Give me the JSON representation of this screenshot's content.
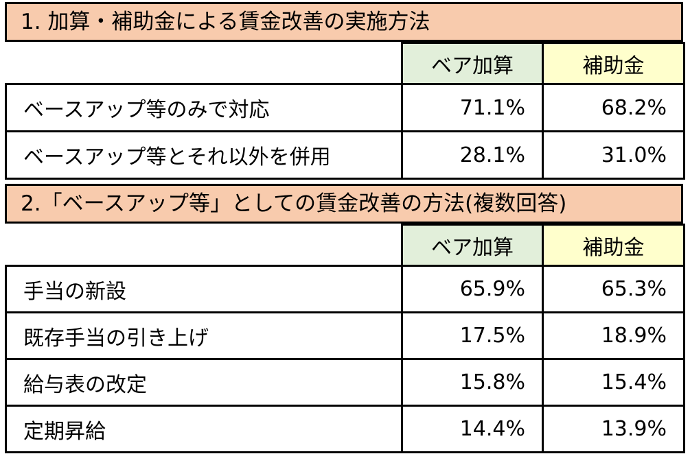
{
  "section1": {
    "title": "1. 加算・補助金による賃金改善の実施方法",
    "columns": {
      "a": "ベア加算",
      "b": "補助金"
    },
    "rows": [
      {
        "label": "ベースアップ等のみで対応",
        "a": "71.1%",
        "b": "68.2%"
      },
      {
        "label": "ベースアップ等とそれ以外を併用",
        "a": "28.1%",
        "b": "31.0%"
      }
    ]
  },
  "section2": {
    "title": "2.「ベースアップ等」としての賃金改善の方法(複数回答)",
    "columns": {
      "a": "ベア加算",
      "b": "補助金"
    },
    "rows": [
      {
        "label": "手当の新設",
        "a": "65.9%",
        "b": "65.3%"
      },
      {
        "label": "既存手当の引き上げ",
        "a": "17.5%",
        "b": "18.9%"
      },
      {
        "label": "給与表の改定",
        "a": "15.8%",
        "b": "15.4%"
      },
      {
        "label": "定期昇給",
        "a": "14.4%",
        "b": "13.9%"
      }
    ]
  },
  "colors": {
    "header_bg": "#f8cbad",
    "col_a_bg": "#e2efda",
    "col_b_bg": "#ffffcc"
  }
}
